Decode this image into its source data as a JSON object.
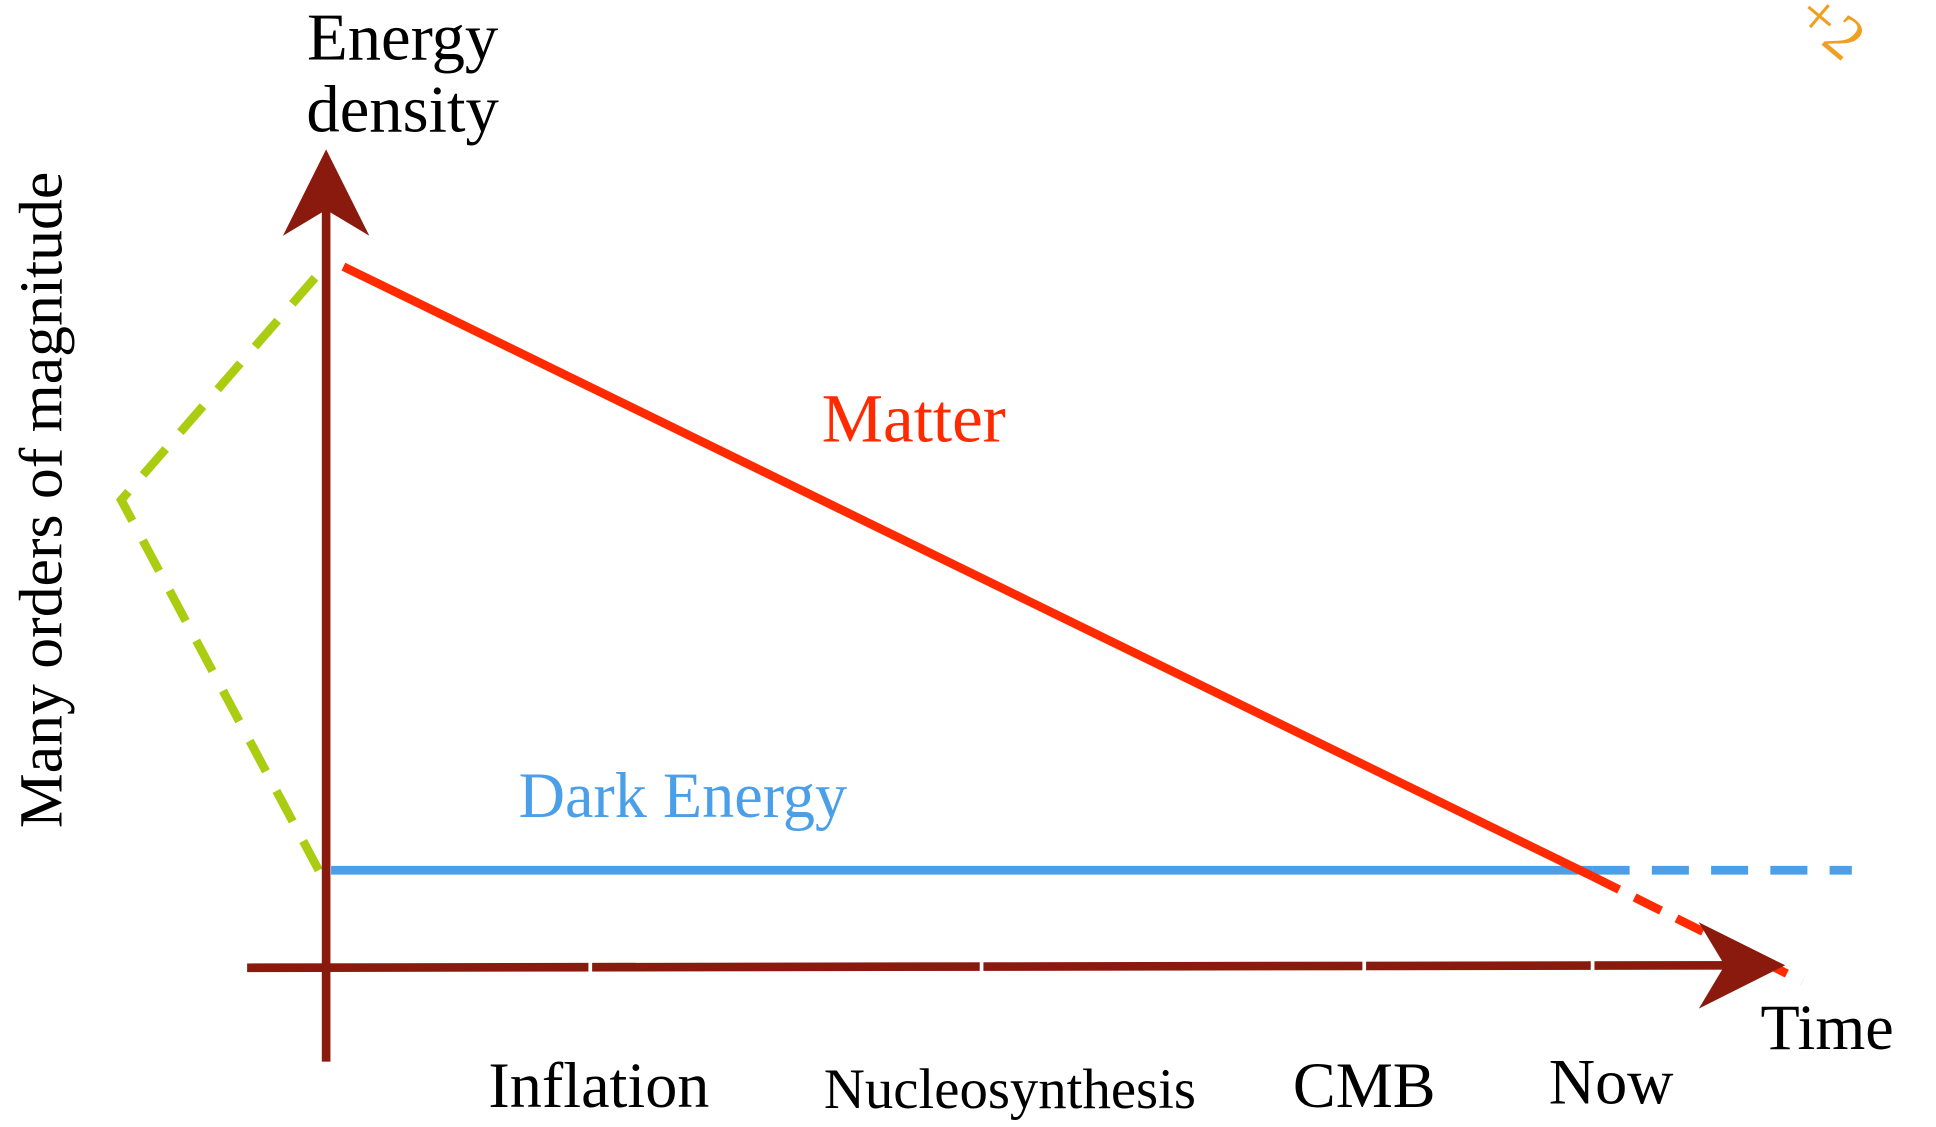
{
  "diagram": {
    "y_axis_label": [
      "Energy",
      "density"
    ],
    "side_label": "Many orders of magnitude",
    "x_axis_label": "Time",
    "curves": {
      "matter": "Matter",
      "dark_energy": "Dark Energy"
    },
    "epochs": [
      "Inflation",
      "Nucleosynthesis",
      "CMB",
      "Now"
    ],
    "corner_annotation": "+2"
  }
}
